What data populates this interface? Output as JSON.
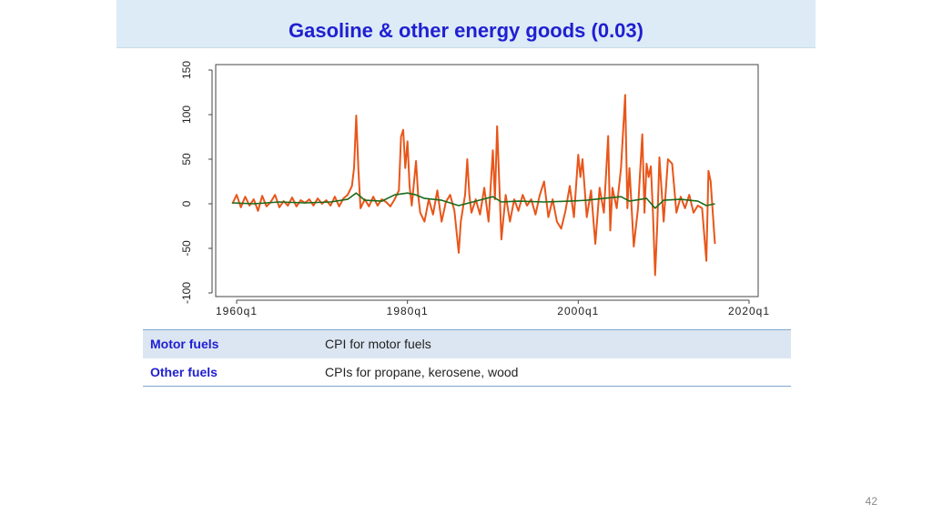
{
  "header": {
    "title": "Gasoline & other energy goods (0.03)"
  },
  "chart_data": {
    "type": "line",
    "title": "",
    "xlabel": "",
    "ylabel": "",
    "x_ticks": [
      "1960q1",
      "1980q1",
      "2000q1",
      "2020q1"
    ],
    "x_tick_values": [
      1960,
      1980,
      2000,
      2020
    ],
    "y_ticks": [
      "-100",
      "-50",
      "0",
      "50",
      "100",
      "150"
    ],
    "y_tick_values": [
      -100,
      -50,
      0,
      50,
      100,
      150
    ],
    "xlim": [
      1959,
      2022
    ],
    "ylim": [
      -100,
      150
    ],
    "grid": false,
    "legend": "none",
    "series": [
      {
        "color": "#e8561a",
        "points": [
          [
            1959.5,
            0
          ],
          [
            1960,
            10
          ],
          [
            1960.5,
            -4
          ],
          [
            1961,
            8
          ],
          [
            1961.5,
            -2
          ],
          [
            1962,
            5
          ],
          [
            1962.5,
            -8
          ],
          [
            1963,
            9
          ],
          [
            1963.5,
            -3
          ],
          [
            1964,
            2
          ],
          [
            1964.5,
            10
          ],
          [
            1965,
            -4
          ],
          [
            1965.5,
            3
          ],
          [
            1966,
            -2
          ],
          [
            1966.5,
            7
          ],
          [
            1967,
            -3
          ],
          [
            1967.5,
            4
          ],
          [
            1968,
            1
          ],
          [
            1968.5,
            5
          ],
          [
            1969,
            -2
          ],
          [
            1969.5,
            6
          ],
          [
            1970,
            0
          ],
          [
            1970.5,
            4
          ],
          [
            1971,
            -2
          ],
          [
            1971.5,
            8
          ],
          [
            1972,
            -3
          ],
          [
            1972.5,
            6
          ],
          [
            1973,
            10
          ],
          [
            1973.5,
            20
          ],
          [
            1973.75,
            40
          ],
          [
            1974,
            99
          ],
          [
            1974.25,
            40
          ],
          [
            1974.5,
            -5
          ],
          [
            1975,
            5
          ],
          [
            1975.5,
            -3
          ],
          [
            1976,
            8
          ],
          [
            1976.5,
            -2
          ],
          [
            1977,
            5
          ],
          [
            1977.5,
            2
          ],
          [
            1978,
            -3
          ],
          [
            1978.5,
            5
          ],
          [
            1979,
            15
          ],
          [
            1979.25,
            75
          ],
          [
            1979.5,
            83
          ],
          [
            1979.75,
            40
          ],
          [
            1980,
            70
          ],
          [
            1980.25,
            20
          ],
          [
            1980.5,
            -2
          ],
          [
            1981,
            48
          ],
          [
            1981.25,
            10
          ],
          [
            1981.5,
            -10
          ],
          [
            1982,
            -20
          ],
          [
            1982.5,
            5
          ],
          [
            1983,
            -12
          ],
          [
            1983.5,
            15
          ],
          [
            1984,
            -20
          ],
          [
            1984.5,
            2
          ],
          [
            1985,
            10
          ],
          [
            1985.5,
            -8
          ],
          [
            1986,
            -55
          ],
          [
            1986.25,
            -20
          ],
          [
            1986.75,
            10
          ],
          [
            1987,
            50
          ],
          [
            1987.25,
            10
          ],
          [
            1987.5,
            -10
          ],
          [
            1988,
            5
          ],
          [
            1988.5,
            -12
          ],
          [
            1989,
            18
          ],
          [
            1989.5,
            -20
          ],
          [
            1990,
            60
          ],
          [
            1990.25,
            5
          ],
          [
            1990.5,
            87
          ],
          [
            1991,
            -40
          ],
          [
            1991.5,
            10
          ],
          [
            1992,
            -20
          ],
          [
            1992.5,
            5
          ],
          [
            1993,
            -8
          ],
          [
            1993.5,
            10
          ],
          [
            1994,
            -2
          ],
          [
            1994.5,
            5
          ],
          [
            1995,
            -12
          ],
          [
            1995.5,
            10
          ],
          [
            1996,
            25
          ],
          [
            1996.5,
            -15
          ],
          [
            1997,
            5
          ],
          [
            1997.5,
            -20
          ],
          [
            1998,
            -28
          ],
          [
            1998.5,
            -8
          ],
          [
            1999,
            20
          ],
          [
            1999.5,
            -15
          ],
          [
            2000,
            55
          ],
          [
            2000.25,
            30
          ],
          [
            2000.5,
            50
          ],
          [
            2001,
            -15
          ],
          [
            2001.5,
            15
          ],
          [
            2002,
            -45
          ],
          [
            2002.5,
            18
          ],
          [
            2003,
            -10
          ],
          [
            2003.5,
            76
          ],
          [
            2003.75,
            -30
          ],
          [
            2004,
            18
          ],
          [
            2004.5,
            -5
          ],
          [
            2005,
            40
          ],
          [
            2005.5,
            122
          ],
          [
            2005.75,
            -5
          ],
          [
            2006,
            40
          ],
          [
            2006.5,
            -48
          ],
          [
            2007,
            -5
          ],
          [
            2007.5,
            78
          ],
          [
            2007.75,
            -10
          ],
          [
            2008,
            45
          ],
          [
            2008.25,
            30
          ],
          [
            2008.5,
            42
          ],
          [
            2008.75,
            -10
          ],
          [
            2009,
            -80
          ],
          [
            2009.25,
            -25
          ],
          [
            2009.5,
            52
          ],
          [
            2010,
            -20
          ],
          [
            2010.5,
            50
          ],
          [
            2011,
            45
          ],
          [
            2011.5,
            -10
          ],
          [
            2012,
            8
          ],
          [
            2012.5,
            -5
          ],
          [
            2013,
            10
          ],
          [
            2013.5,
            -10
          ],
          [
            2014,
            -2
          ],
          [
            2014.5,
            -5
          ],
          [
            2015,
            -64
          ],
          [
            2015.25,
            37
          ],
          [
            2015.5,
            25
          ],
          [
            2016,
            -45
          ]
        ]
      },
      {
        "color": "#1a6b1a",
        "points": [
          [
            1959.5,
            1
          ],
          [
            1962,
            0
          ],
          [
            1965,
            2
          ],
          [
            1968,
            1
          ],
          [
            1971,
            2
          ],
          [
            1973,
            5
          ],
          [
            1974,
            12
          ],
          [
            1975,
            4
          ],
          [
            1977,
            3
          ],
          [
            1978.5,
            10
          ],
          [
            1980,
            12
          ],
          [
            1981,
            10
          ],
          [
            1982,
            6
          ],
          [
            1984,
            4
          ],
          [
            1986,
            -2
          ],
          [
            1988,
            3
          ],
          [
            1990,
            8
          ],
          [
            1991,
            2
          ],
          [
            1993,
            3
          ],
          [
            1996,
            2
          ],
          [
            1999,
            3
          ],
          [
            2001,
            4
          ],
          [
            2003,
            6
          ],
          [
            2005,
            8
          ],
          [
            2006,
            3
          ],
          [
            2008,
            6
          ],
          [
            2009,
            -5
          ],
          [
            2010,
            4
          ],
          [
            2012,
            5
          ],
          [
            2014,
            3
          ],
          [
            2015,
            -2
          ],
          [
            2016,
            0
          ]
        ]
      }
    ]
  },
  "legend_table": {
    "rows": [
      {
        "name": "Motor fuels",
        "description": "CPI for motor fuels"
      },
      {
        "name": "Other fuels",
        "description": "CPIs for propane, kerosene, wood"
      }
    ]
  },
  "footer": {
    "page_number": "42"
  }
}
